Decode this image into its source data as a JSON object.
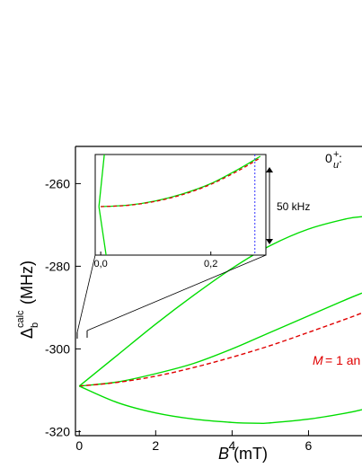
{
  "chart_data": {
    "type": "line",
    "xlabel": "B (mT)",
    "ylabel": "Δ_b^calc (MHz)",
    "xlim": [
      -0.1,
      7.4
    ],
    "ylim": [
      -321,
      -251
    ],
    "xticks": [
      0,
      2,
      4,
      6
    ],
    "yticks": [
      -320,
      -300,
      -280,
      -260
    ],
    "state_label": "0_u^+:",
    "curve_label": "M = 1 an",
    "colors": {
      "green": "#00dd00",
      "red": "#e00000",
      "blue": "#3030ff"
    },
    "series": [
      {
        "x": [
          0,
          1,
          2,
          3,
          4,
          5,
          6,
          7,
          7.4
        ],
        "y": [
          -309,
          -301.5,
          -294,
          -287,
          -280.5,
          -275,
          -271,
          -268.5,
          -268
        ]
      },
      {
        "x": [
          0,
          1,
          2,
          3,
          4,
          5,
          6,
          7,
          7.4
        ],
        "y": [
          -309,
          -308,
          -306,
          -303.5,
          -300,
          -296,
          -292,
          -288,
          -286.5
        ]
      },
      {
        "x": [
          0,
          1,
          2,
          3,
          4,
          5,
          6,
          7,
          7.4
        ],
        "y": [
          -309,
          -308.1,
          -306.6,
          -304.5,
          -302,
          -299.2,
          -296,
          -292.7,
          -291.3
        ],
        "style": "dashed"
      },
      {
        "x": [
          0,
          1,
          2,
          3,
          4,
          4.7,
          5,
          6,
          7,
          7.4
        ],
        "y": [
          -309,
          -313,
          -315.5,
          -317,
          -317.8,
          -318,
          -317.9,
          -317,
          -315.5,
          -314.7
        ]
      }
    ],
    "inset": {
      "xlim": [
        -0.01,
        0.3
      ],
      "xticks": [
        0.0,
        0.2
      ],
      "xtick_labels": [
        "0,0",
        "0,2"
      ],
      "scale_label": "50 kHz",
      "series": [
        {
          "x": [
            0,
            0.05,
            0.1,
            0.15,
            0.2,
            0.25,
            0.29
          ],
          "y": [
            0,
            0.01,
            0.04,
            0.09,
            0.16,
            0.26,
            0.35
          ]
        },
        {
          "x": [
            0,
            0.05,
            0.1,
            0.15,
            0.2,
            0.25,
            0.29
          ],
          "y": [
            0,
            0.009,
            0.037,
            0.085,
            0.155,
            0.25,
            0.34
          ],
          "style": "dashed"
        }
      ],
      "vline_x": 0.28
    }
  }
}
